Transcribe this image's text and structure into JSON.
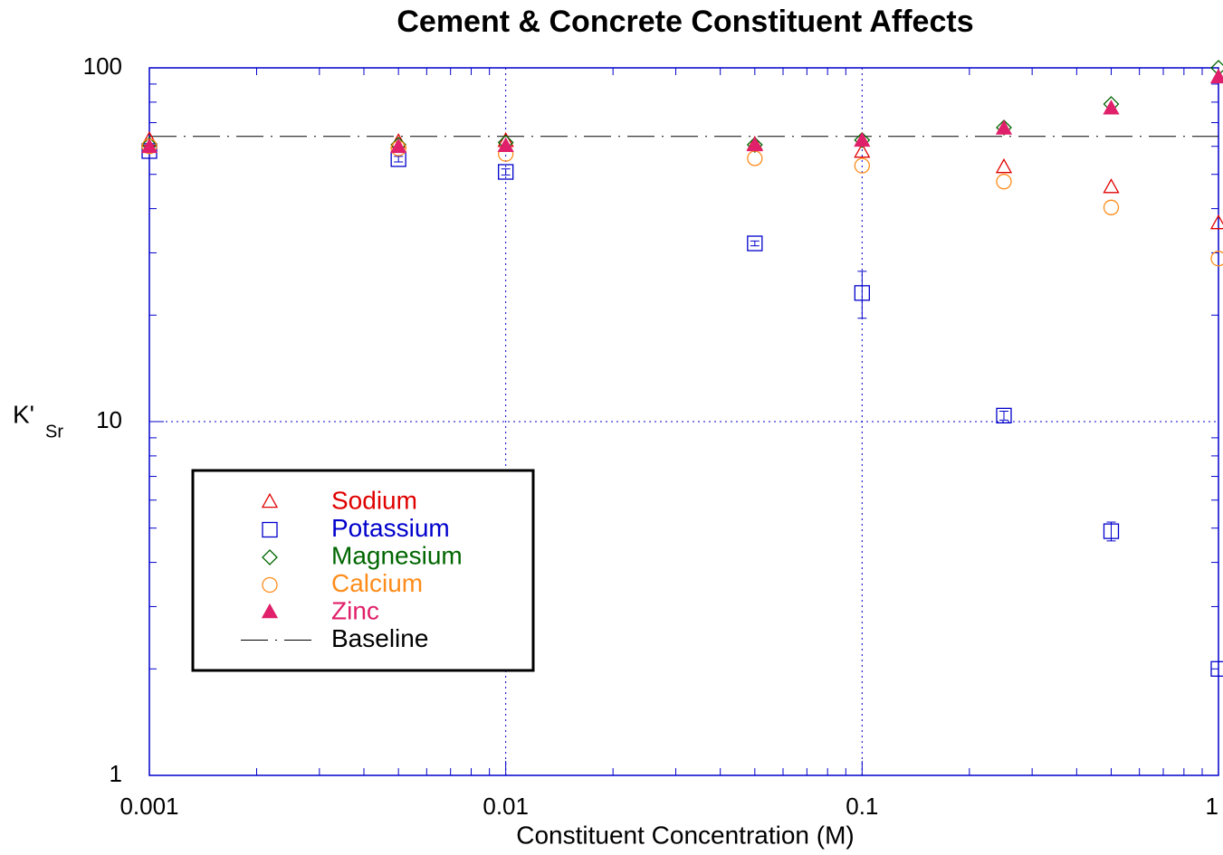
{
  "chart_data": {
    "type": "scatter",
    "title": "Cement & Concrete Constituent Affects",
    "x_label": "Constituent Concentration (M)",
    "y_label": "K'",
    "y_label_sub": "Sr",
    "log_x": true,
    "log_y": true,
    "grid": true,
    "legend": "lower-left",
    "xlim": [
      0.001,
      1
    ],
    "ylim": [
      1,
      100
    ],
    "xticks": [
      0.001,
      0.01,
      0.1,
      1
    ],
    "yticks": [
      1,
      10,
      100
    ],
    "x": [
      0.001,
      0.005,
      0.01,
      0.05,
      0.1,
      0.25,
      0.5,
      1
    ],
    "series": [
      {
        "name": "Sodium",
        "color": "#e00000",
        "marker": "triangle-open",
        "values": [
          62.4,
          61.6,
          62,
          60.6,
          57.8,
          52.3,
          45.9,
          36.3
        ]
      },
      {
        "name": "Potassium",
        "color": "#0000cc",
        "marker": "square",
        "values": [
          58.2,
          55.2,
          50.8,
          31.9,
          23.1,
          10.4,
          4.9,
          2.0
        ],
        "errors": [
          null,
          1,
          1,
          0.5,
          3.5,
          0.3,
          0.3,
          null
        ]
      },
      {
        "name": "Magnesium",
        "color": "#006600",
        "marker": "diamond",
        "values": [
          60.6,
          60.6,
          61.5,
          60.6,
          62.5,
          67.8,
          79,
          100
        ]
      },
      {
        "name": "Calcium",
        "color": "#ff8c1a",
        "marker": "circle",
        "values": [
          60,
          59.2,
          57.1,
          55.5,
          52.9,
          47.7,
          40.3,
          28.9
        ]
      },
      {
        "name": "Zinc",
        "color": "#e0206a",
        "marker": "triangle-filled",
        "values": [
          59.6,
          59.6,
          60,
          60.3,
          62.1,
          67.2,
          76.6,
          93.8
        ]
      }
    ],
    "baseline": {
      "name": "Baseline",
      "value": 64,
      "color": "#000000"
    }
  }
}
